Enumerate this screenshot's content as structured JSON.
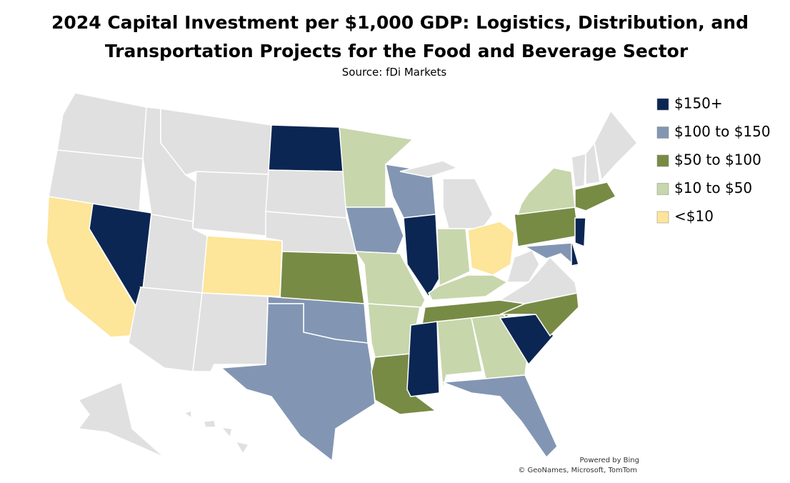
{
  "title_line1": "2024 Capital Investment per $1,000 GDP: Logistics, Distribution, and",
  "title_line2": "Transportation Projects for the Food and Beverage Sector",
  "subtitle": "Source: fDi Markets",
  "legend": [
    {
      "label": "$150+",
      "color": "#0b2653"
    },
    {
      "label": "$100 to $150",
      "color": "#8296b3"
    },
    {
      "label": "$50 to $100",
      "color": "#788b45"
    },
    {
      "label": "$10 to $50",
      "color": "#c8d6ac"
    },
    {
      "label": "<$10",
      "color": "#fde599"
    }
  ],
  "credit_line1": "Powered by Bing",
  "credit_line2": "© GeoNames, Microsoft, TomTom"
}
